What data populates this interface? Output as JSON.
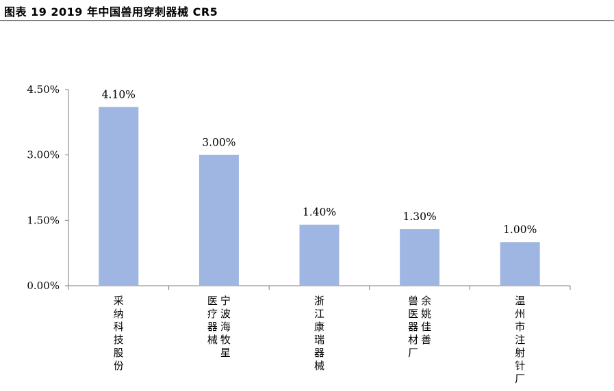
{
  "figure": {
    "title": "图表 19 2019 年中国兽用穿刺器械 CR5"
  },
  "chart_data": {
    "type": "bar",
    "title": "",
    "xlabel": "",
    "ylabel": "",
    "categories": [
      "采纳科技股份",
      "宁波海牧星医疗器械",
      "浙江康瑞器械",
      "余姚佳善兽医器材厂",
      "温州市注射针厂"
    ],
    "category_label_columns": [
      [
        "采纳科技股份"
      ],
      [
        "宁波海牧星",
        "医疗器械"
      ],
      [
        "浙江康瑞器械"
      ],
      [
        "余姚佳善",
        "兽医器材厂"
      ],
      [
        "温州市注射针厂"
      ]
    ],
    "values": [
      4.1,
      3.0,
      1.4,
      1.3,
      1.0
    ],
    "value_labels": [
      "4.10%",
      "3.00%",
      "1.40%",
      "1.30%",
      "1.00%"
    ],
    "unit": "%",
    "ylim": [
      0,
      4.5
    ],
    "yticks": [
      0,
      1.5,
      3.0,
      4.5
    ],
    "ytick_labels": [
      "0.00%",
      "1.50%",
      "3.00%",
      "4.50%"
    ],
    "grid": false,
    "legend": "none",
    "bar_color": "#a0b6e2"
  }
}
